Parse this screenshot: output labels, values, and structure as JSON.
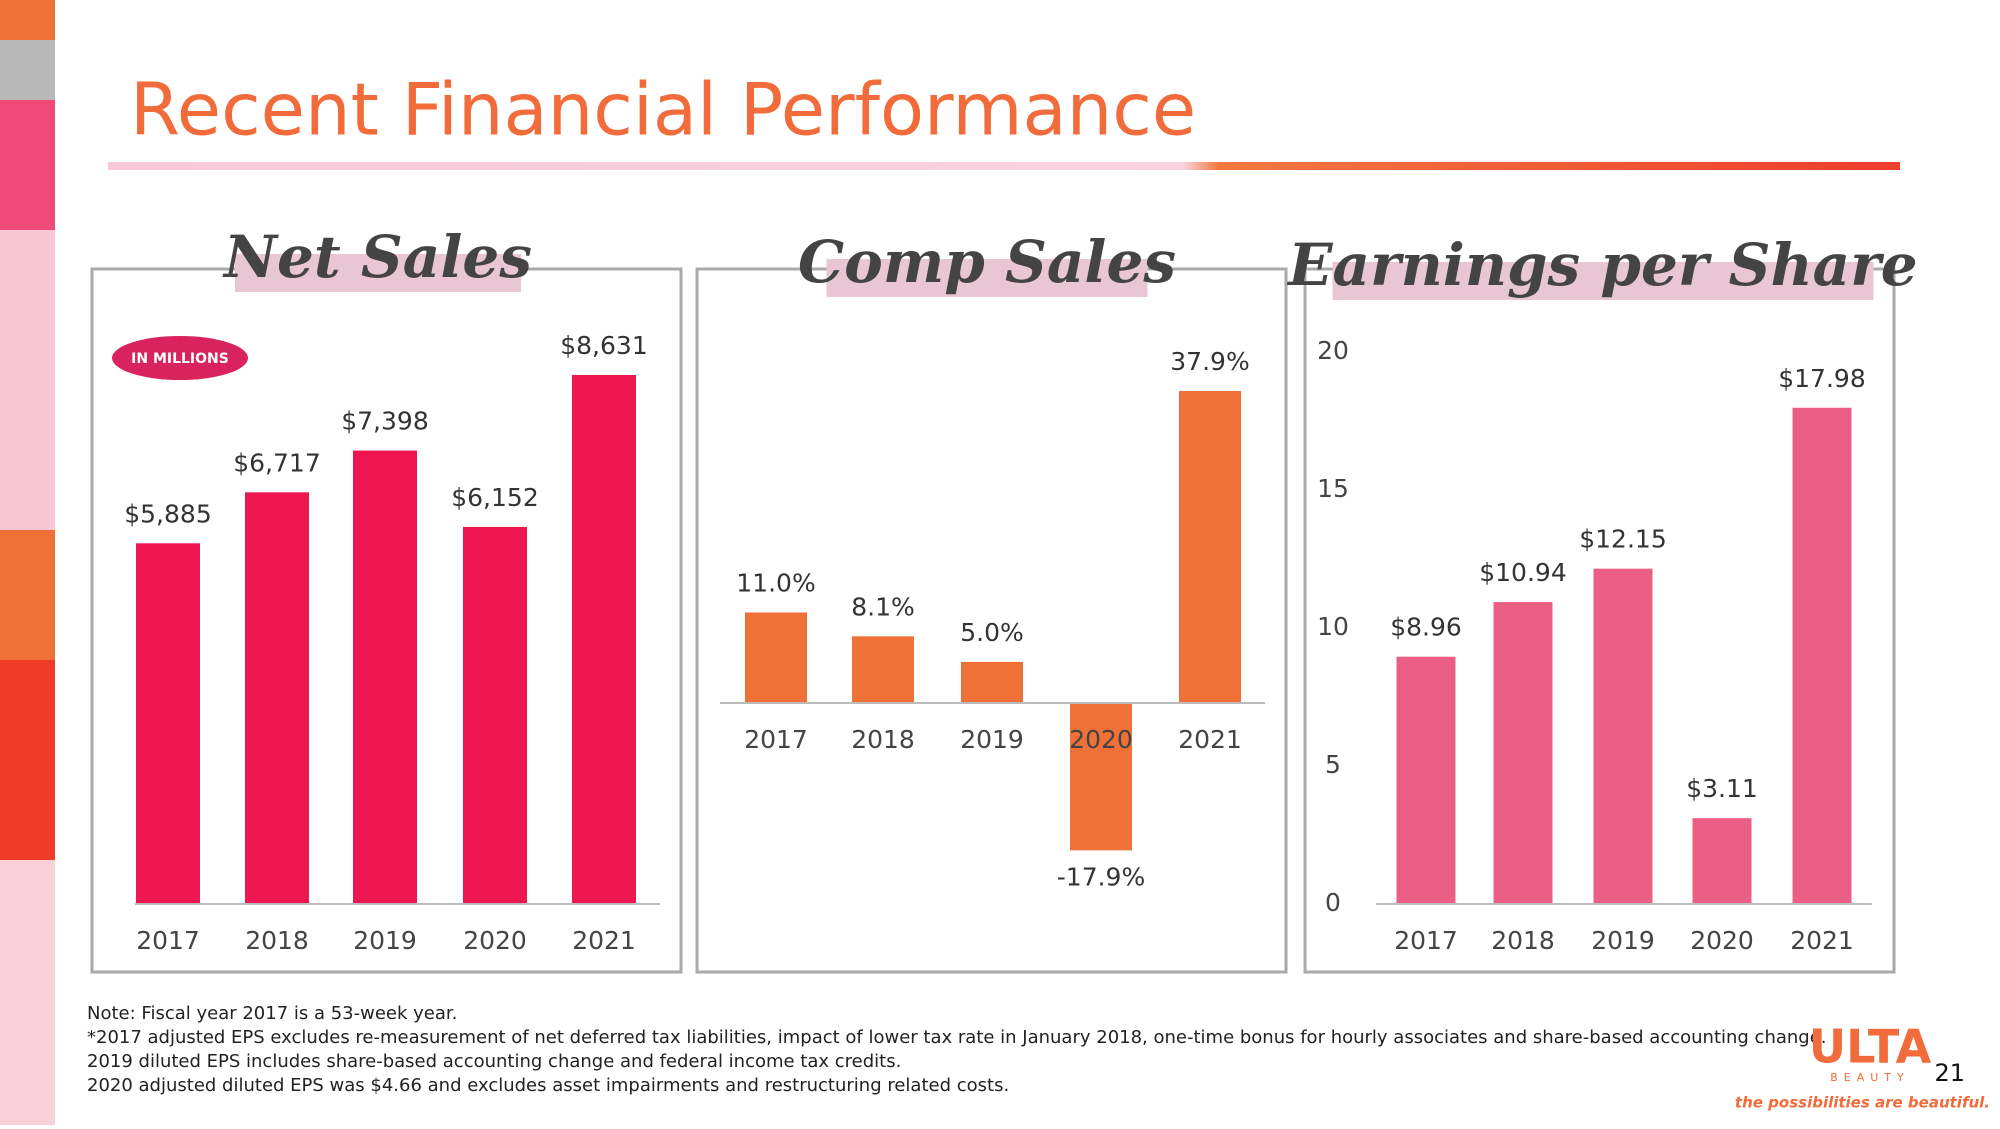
{
  "title": "Recent Financial Performance",
  "chart_data": [
    {
      "type": "bar",
      "title": "Net Sales",
      "badge": "IN MILLIONS",
      "categories": [
        "2017",
        "2018",
        "2019",
        "2020",
        "2021"
      ],
      "values": [
        5885,
        6717,
        7398,
        6152,
        8631
      ],
      "value_labels": [
        "$5,885",
        "$6,717",
        "$7,398",
        "$6,152",
        "$8,631"
      ],
      "color": "#ed1651"
    },
    {
      "type": "bar",
      "title": "Comp Sales",
      "categories": [
        "2017",
        "2018",
        "2019",
        "2020",
        "2021"
      ],
      "values": [
        11.0,
        8.1,
        5.0,
        -17.9,
        37.9
      ],
      "value_labels": [
        "11.0%",
        "8.1%",
        "5.0%",
        "-17.9%",
        "37.9%"
      ],
      "color": "#f07137"
    },
    {
      "type": "bar",
      "title": "Earnings per Share",
      "categories": [
        "2017",
        "2018",
        "2019",
        "2020",
        "2021"
      ],
      "values": [
        8.96,
        10.94,
        12.15,
        3.11,
        17.98
      ],
      "value_labels": [
        "$8.96",
        "$10.94",
        "$12.15",
        "$3.11",
        "$17.98"
      ],
      "color": "#ec5f84",
      "ylim": [
        0,
        20
      ],
      "yticks": [
        0,
        5,
        10,
        15,
        20
      ],
      "grid": false
    }
  ],
  "notes": [
    "Note: Fiscal year 2017 is a 53-week year.",
    "*2017 adjusted EPS excludes re-measurement of net deferred tax liabilities, impact of lower tax rate in January 2018, one-time bonus for hourly associates and share-based accounting change.",
    "2019 diluted EPS includes share-based accounting change and federal income tax credits.",
    "2020 adjusted diluted EPS was $4.66 and excludes asset impairments and restructuring related costs."
  ],
  "logo": {
    "name": "ULTA",
    "sub": "BEAUTY",
    "tagline": "the possibilities are beautiful."
  },
  "page_number": "21"
}
